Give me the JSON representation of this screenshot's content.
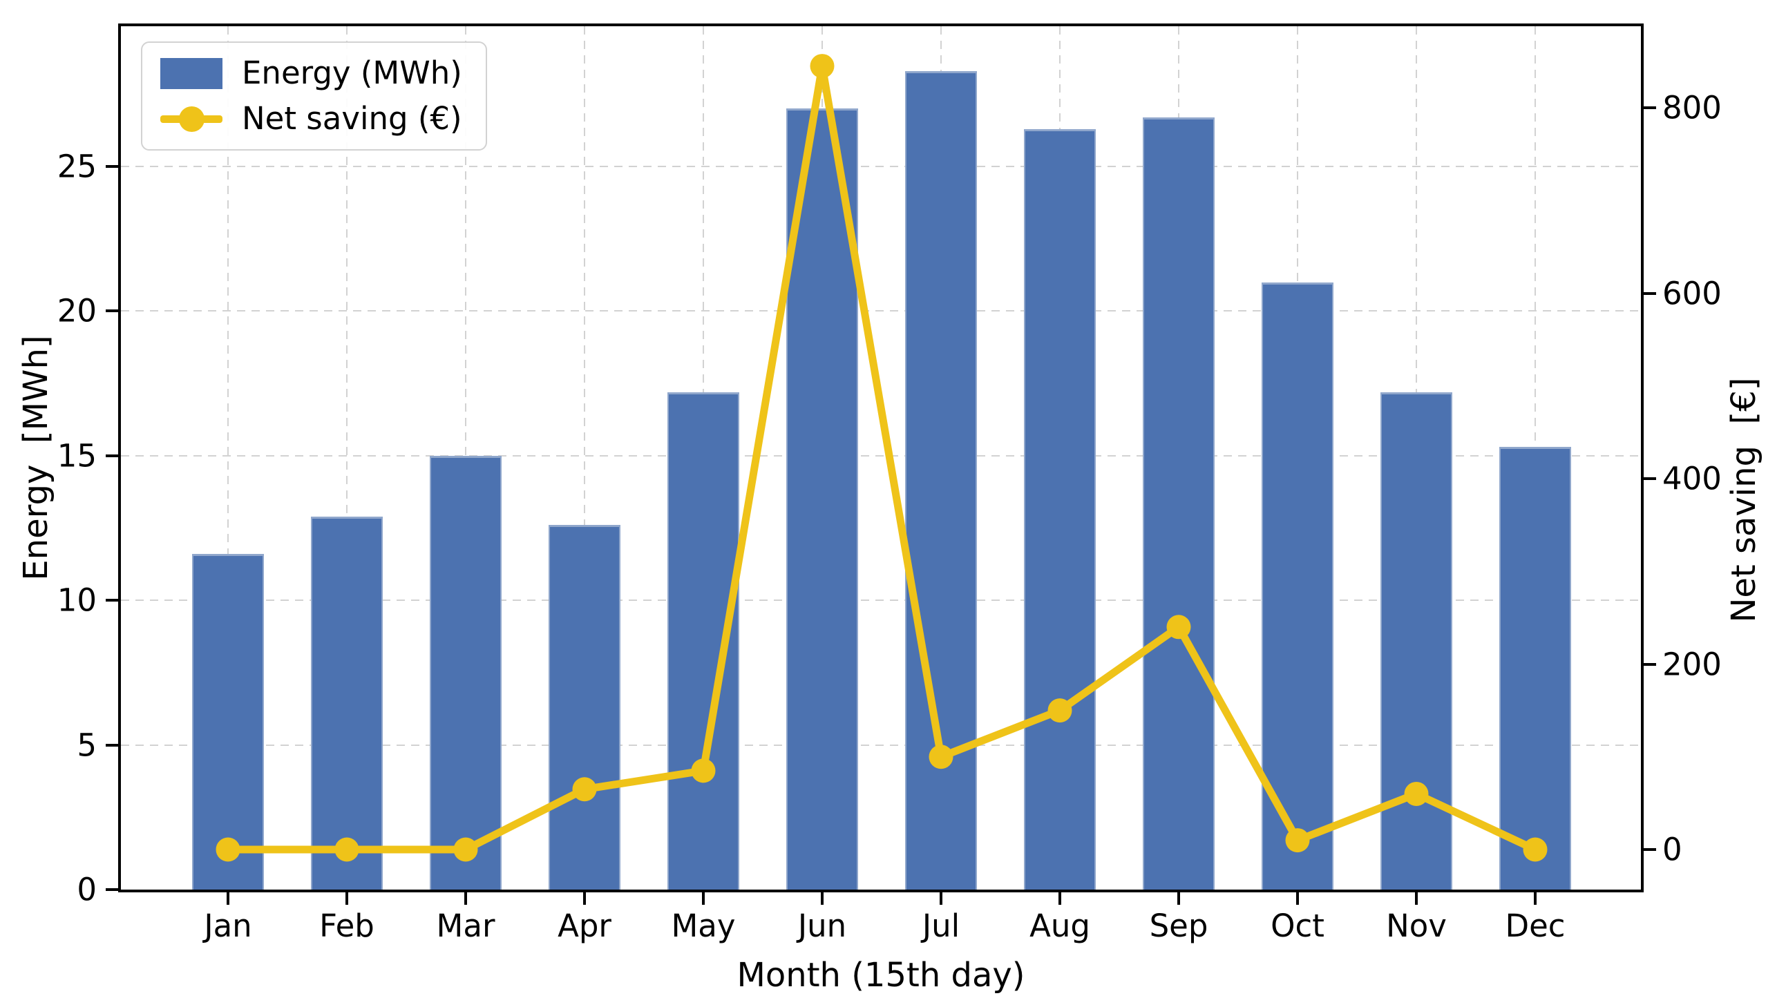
{
  "chart_data": {
    "type": "combo-bar-line",
    "xlabel": "Month (15th day)",
    "categories": [
      "Jan",
      "Feb",
      "Mar",
      "Apr",
      "May",
      "Jun",
      "Jul",
      "Aug",
      "Sep",
      "Oct",
      "Nov",
      "Dec"
    ],
    "series": [
      {
        "name": "Energy (MWh)",
        "type": "bar",
        "axis": "left",
        "color": "#4C72B0",
        "values": [
          11.6,
          12.9,
          15.0,
          12.6,
          17.2,
          27.0,
          28.3,
          26.3,
          26.7,
          21.0,
          17.2,
          15.3
        ]
      },
      {
        "name": "Net saving (€)",
        "type": "line",
        "axis": "right",
        "color": "#EFC319",
        "marker": "circle",
        "values": [
          0,
          0,
          0,
          65,
          85,
          845,
          100,
          150,
          240,
          10,
          60,
          0
        ]
      }
    ],
    "left_axis": {
      "label": "Energy  [MWh]",
      "ticks": [
        0,
        5,
        10,
        15,
        20,
        25
      ],
      "range": [
        0,
        29.85
      ]
    },
    "right_axis": {
      "label": "Net saving  [€]",
      "ticks": [
        0,
        200,
        400,
        600,
        800
      ],
      "range": [
        -43,
        888
      ]
    },
    "legend": {
      "position": "upper left"
    },
    "grid": {
      "style": "dashed",
      "color": "#d2d2d2",
      "both_directions": true
    }
  }
}
